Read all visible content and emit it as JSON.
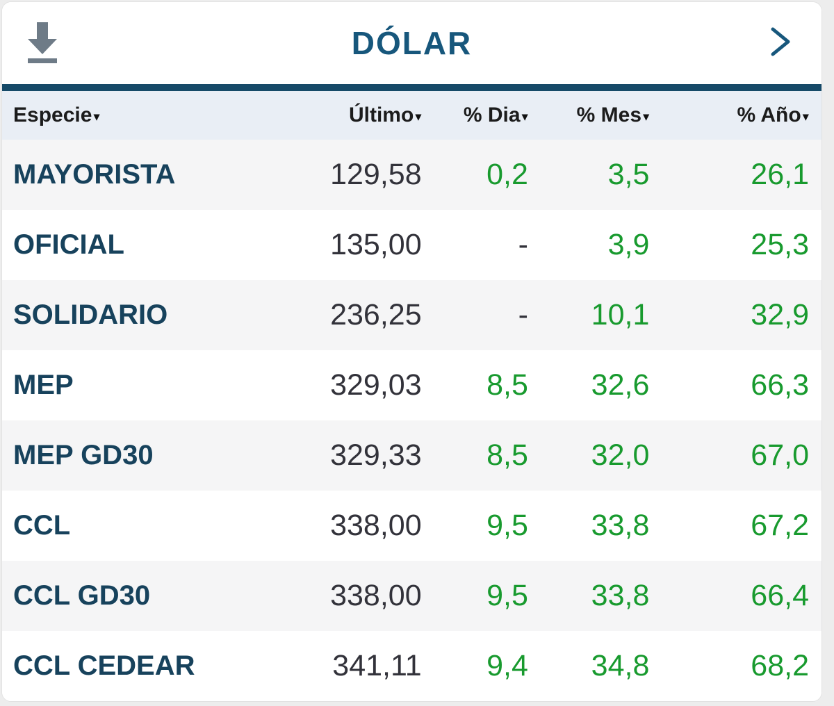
{
  "widget": {
    "title": "DÓLAR",
    "sort_indicator": "▾"
  },
  "colors": {
    "accent_teal": "#164a68",
    "title_blue": "#17577c",
    "row_label_blue": "#17425c",
    "positive_green": "#189a2e",
    "value_dark": "#32323a",
    "header_row_bg": "#e9eef5",
    "alt_row_bg": "#f5f5f6",
    "download_icon_gray": "#6e7b87"
  },
  "table": {
    "columns": [
      {
        "label": "Especie",
        "align": "left"
      },
      {
        "label": "Último",
        "align": "right"
      },
      {
        "label": "% Dia",
        "align": "right"
      },
      {
        "label": "% Mes",
        "align": "right"
      },
      {
        "label": "% Año",
        "align": "right"
      }
    ],
    "rows": [
      {
        "especie": "MAYORISTA",
        "ultimo": "129,58",
        "dia": "0,2",
        "mes": "3,5",
        "anio": "26,1"
      },
      {
        "especie": "OFICIAL",
        "ultimo": "135,00",
        "dia": "-",
        "mes": "3,9",
        "anio": "25,3"
      },
      {
        "especie": "SOLIDARIO",
        "ultimo": "236,25",
        "dia": "-",
        "mes": "10,1",
        "anio": "32,9"
      },
      {
        "especie": "MEP",
        "ultimo": "329,03",
        "dia": "8,5",
        "mes": "32,6",
        "anio": "66,3"
      },
      {
        "especie": "MEP GD30",
        "ultimo": "329,33",
        "dia": "8,5",
        "mes": "32,0",
        "anio": "67,0"
      },
      {
        "especie": "CCL",
        "ultimo": "338,00",
        "dia": "9,5",
        "mes": "33,8",
        "anio": "67,2"
      },
      {
        "especie": "CCL GD30",
        "ultimo": "338,00",
        "dia": "9,5",
        "mes": "33,8",
        "anio": "66,4"
      },
      {
        "especie": "CCL CEDEAR",
        "ultimo": "341,11",
        "dia": "9,4",
        "mes": "34,8",
        "anio": "68,2"
      }
    ]
  }
}
